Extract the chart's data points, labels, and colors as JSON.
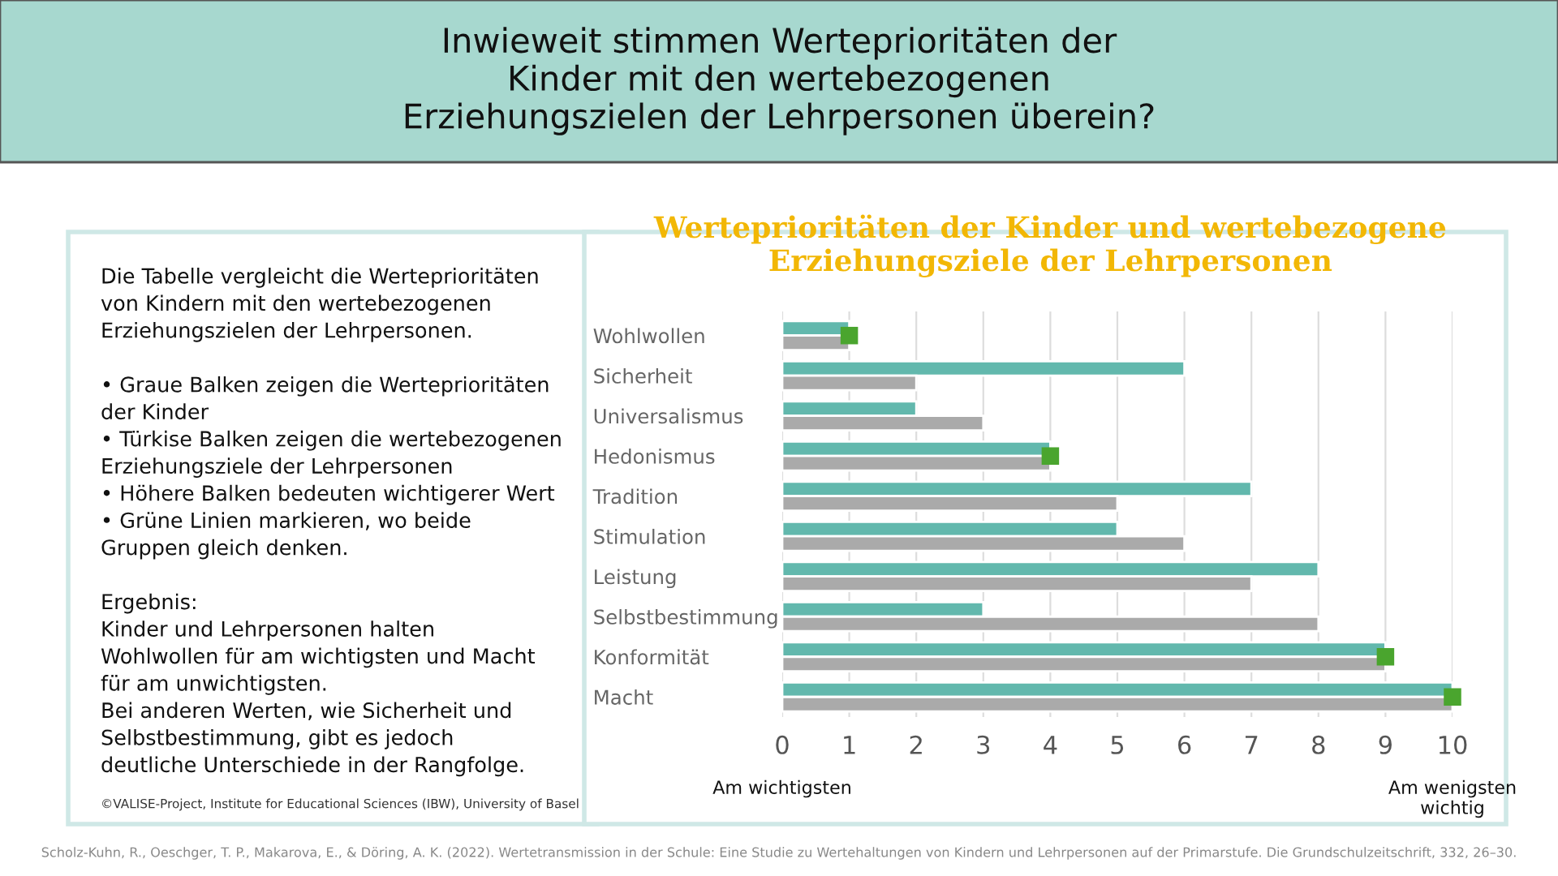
{
  "chart_data": {
    "type": "bar",
    "orientation": "horizontal",
    "title": "Werteprioritäten der Kinder und wertebezogene\nErziehungsziele der Lehrpersonen",
    "categories": [
      "Wohlwollen",
      "Sicherheit",
      "Universalismus",
      "Hedonismus",
      "Tradition",
      "Stimulation",
      "Leistung",
      "Selbstbestimmung",
      "Konformität",
      "Macht"
    ],
    "series": [
      {
        "color": "#62b8ad",
        "values": [
          1,
          6,
          2,
          4,
          7,
          5,
          8,
          3,
          9,
          10
        ]
      },
      {
        "color": "#aaaaaa",
        "values": [
          1,
          2,
          3,
          4,
          5,
          6,
          7,
          8,
          9,
          10
        ]
      },
      {
        "type": "scatter",
        "marker": "square",
        "color": "#4aa52e",
        "values": [
          1,
          null,
          null,
          4,
          null,
          null,
          null,
          null,
          9,
          10
        ]
      }
    ],
    "xlim": [
      0,
      10
    ],
    "xticks": [
      0,
      1,
      2,
      3,
      4,
      5,
      6,
      7,
      8,
      9,
      10
    ],
    "grid": "x",
    "annotations": [
      "Inwieweit stimmen Werteprioritäten der\nKinder mit den wertebezogenen\nErziehungszielen der Lehrpersonen überein?",
      "Die Tabelle vergleicht die Werteprioritäten\nvon Kindern mit den wertebezogenen\nErziehungszielen der Lehrpersonen.\n\n• Graue Balken zeigen die Werteprioritäten\nder Kinder\n• Türkise Balken zeigen die wertebezogenen\nErziehungsziele der Lehrpersonen\n• Höhere Balken bedeuten wichtigerer Wert\n• Grüne Linien markieren, wo beide\nGruppen gleich denken.\n\nErgebnis:\nKinder und Lehrpersonen halten\nWohlwollen für am wichtigsten und Macht\nfür am unwichtigsten.\nBei anderen Werten, wie Sicherheit und\nSelbstbestimmung, gibt es jedoch\ndeutliche Unterschiede in der Rangfolge.",
      "©VALISE-Project, Institute for Educational Sciences (IBW), University of Basel",
      "Scholz-Kuhn, R., Oeschger, T. P., Makarova, E., & Döring, A. K. (2022). Wertetransmission in der Schule: Eine Studie zu Wertehaltungen von Kindern und Lehrpersonen auf der Primarstufe. Die Grundschulzeitschrift, 332, 26–30.",
      "Am wichtigsten",
      "Am wenigsten\nwichtig"
    ]
  }
}
